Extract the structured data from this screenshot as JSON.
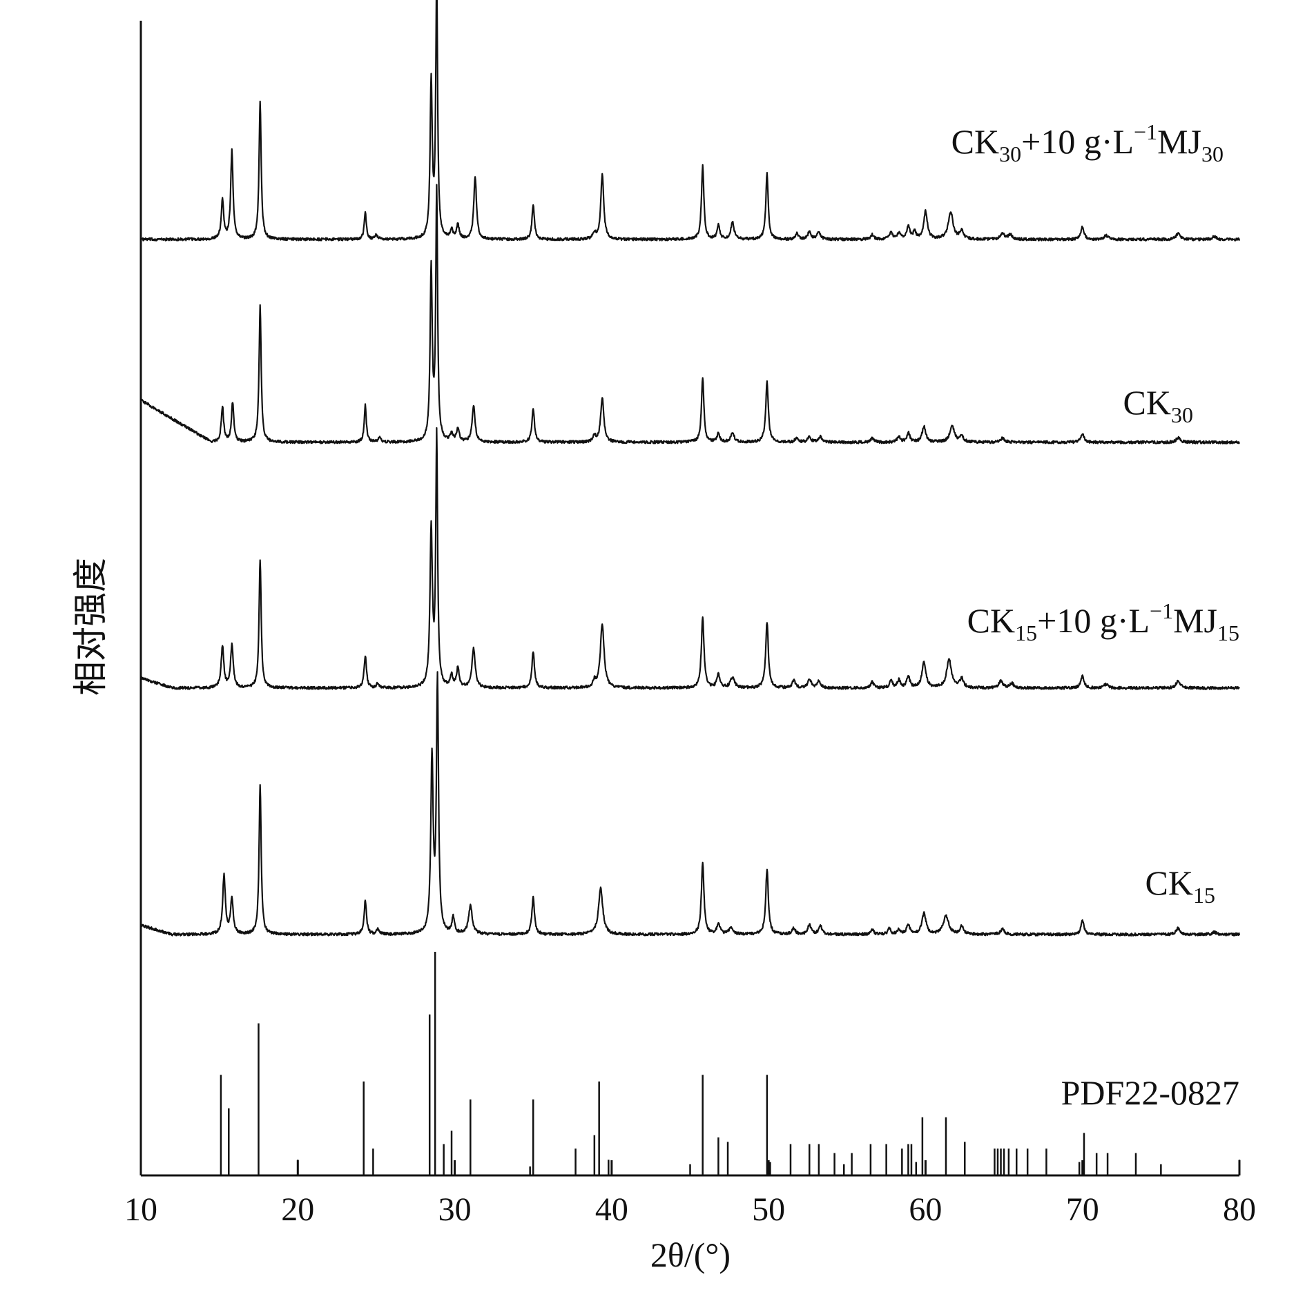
{
  "chart_data": {
    "type": "line",
    "title": "",
    "xlabel": "2θ/(°)",
    "ylabel": "相对强度",
    "xlim": [
      10,
      80
    ],
    "xticks": [
      10,
      20,
      30,
      40,
      50,
      60,
      70,
      "80"
    ],
    "ytick_labels": "none",
    "grid": false,
    "legend": "none (series labelled inline at right)",
    "line_color": "#111111",
    "series": [
      {
        "name": "CK30+10 g·L−1MJ30",
        "label_parts": {
          "a": "CK",
          "a_sub": "30",
          "b": "+10 g·L",
          "b_sup": "−1",
          "c": "MJ",
          "c_sub": "30"
        },
        "baseline": 0.1,
        "drift": [],
        "peaks": [
          [
            15.2,
            5.2,
            0.09
          ],
          [
            15.8,
            11.5,
            0.09
          ],
          [
            17.6,
            18.0,
            0.08
          ],
          [
            24.3,
            3.5,
            0.08
          ],
          [
            25.0,
            0.6,
            0.1
          ],
          [
            28.5,
            20.5,
            0.08
          ],
          [
            28.85,
            33.5,
            0.07
          ],
          [
            29.8,
            1.2,
            0.1
          ],
          [
            30.2,
            1.8,
            0.1
          ],
          [
            31.3,
            8.2,
            0.1
          ],
          [
            35.0,
            4.5,
            0.09
          ],
          [
            38.9,
            0.8,
            0.1
          ],
          [
            39.4,
            8.5,
            0.11
          ],
          [
            45.8,
            9.6,
            0.09
          ],
          [
            46.8,
            1.8,
            0.1
          ],
          [
            47.7,
            2.3,
            0.12
          ],
          [
            49.9,
            8.6,
            0.09
          ],
          [
            51.8,
            0.8,
            0.1
          ],
          [
            52.6,
            1.0,
            0.12
          ],
          [
            53.2,
            1.0,
            0.12
          ],
          [
            56.6,
            0.6,
            0.12
          ],
          [
            57.8,
            1.0,
            0.1
          ],
          [
            58.3,
            0.8,
            0.12
          ],
          [
            58.9,
            1.6,
            0.12
          ],
          [
            59.3,
            1.0,
            0.1
          ],
          [
            60.0,
            3.6,
            0.14
          ],
          [
            61.6,
            3.6,
            0.18
          ],
          [
            62.3,
            1.1,
            0.14
          ],
          [
            64.9,
            0.8,
            0.15
          ],
          [
            65.4,
            0.6,
            0.15
          ],
          [
            70.0,
            1.6,
            0.12
          ],
          [
            71.5,
            0.5,
            0.15
          ],
          [
            76.1,
            0.8,
            0.15
          ],
          [
            78.4,
            0.4,
            0.15
          ]
        ]
      },
      {
        "name": "CK30",
        "label_parts": {
          "a": "CK",
          "a_sub": "30"
        },
        "baseline": 0.2,
        "drift": [
          10,
          5.5,
          14.5
        ],
        "peaks": [
          [
            15.2,
            4.6,
            0.09
          ],
          [
            15.85,
            5.2,
            0.09
          ],
          [
            17.6,
            17.8,
            0.08
          ],
          [
            24.3,
            4.8,
            0.08
          ],
          [
            25.2,
            0.6,
            0.1
          ],
          [
            28.5,
            22.5,
            0.08
          ],
          [
            28.85,
            32.5,
            0.07
          ],
          [
            29.8,
            1.0,
            0.1
          ],
          [
            30.2,
            1.8,
            0.1
          ],
          [
            31.2,
            4.8,
            0.11
          ],
          [
            35.0,
            4.2,
            0.1
          ],
          [
            38.9,
            0.8,
            0.1
          ],
          [
            39.4,
            5.8,
            0.12
          ],
          [
            45.8,
            8.5,
            0.09
          ],
          [
            46.8,
            1.2,
            0.1
          ],
          [
            47.7,
            1.1,
            0.14
          ],
          [
            49.9,
            7.8,
            0.1
          ],
          [
            51.8,
            0.6,
            0.12
          ],
          [
            52.6,
            0.7,
            0.12
          ],
          [
            53.3,
            0.7,
            0.12
          ],
          [
            56.6,
            0.5,
            0.12
          ],
          [
            58.3,
            0.7,
            0.12
          ],
          [
            58.9,
            1.2,
            0.12
          ],
          [
            59.9,
            2.0,
            0.14
          ],
          [
            61.7,
            2.0,
            0.18
          ],
          [
            62.3,
            0.8,
            0.14
          ],
          [
            64.9,
            0.5,
            0.15
          ],
          [
            70.0,
            1.1,
            0.12
          ],
          [
            76.1,
            0.6,
            0.15
          ]
        ]
      },
      {
        "name": "CK15+10 g·L−1MJ15",
        "label_parts": {
          "a": "CK",
          "a_sub": "15",
          "b": "+10 g·L",
          "b_sup": "−1",
          "c": "MJ",
          "c_sub": "15"
        },
        "baseline": 0.1,
        "drift": [
          10,
          1.3,
          12
        ],
        "peaks": [
          [
            15.2,
            5.4,
            0.1
          ],
          [
            15.8,
            5.6,
            0.1
          ],
          [
            17.6,
            16.8,
            0.08
          ],
          [
            24.3,
            4.2,
            0.09
          ],
          [
            25.1,
            0.6,
            0.1
          ],
          [
            28.5,
            20.5,
            0.09
          ],
          [
            28.85,
            32.5,
            0.07
          ],
          [
            29.8,
            1.5,
            0.1
          ],
          [
            30.2,
            2.5,
            0.1
          ],
          [
            31.2,
            5.2,
            0.12
          ],
          [
            35.0,
            4.7,
            0.1
          ],
          [
            38.9,
            0.8,
            0.1
          ],
          [
            39.4,
            8.4,
            0.14
          ],
          [
            45.8,
            9.2,
            0.1
          ],
          [
            46.8,
            1.7,
            0.12
          ],
          [
            47.7,
            1.4,
            0.15
          ],
          [
            49.9,
            8.6,
            0.1
          ],
          [
            51.6,
            1.0,
            0.12
          ],
          [
            52.6,
            1.2,
            0.12
          ],
          [
            53.2,
            1.0,
            0.12
          ],
          [
            56.6,
            0.8,
            0.12
          ],
          [
            57.8,
            1.0,
            0.1
          ],
          [
            58.3,
            1.0,
            0.12
          ],
          [
            58.9,
            1.5,
            0.12
          ],
          [
            59.9,
            3.3,
            0.15
          ],
          [
            61.5,
            3.7,
            0.18
          ],
          [
            62.3,
            1.2,
            0.14
          ],
          [
            64.8,
            0.9,
            0.15
          ],
          [
            65.5,
            0.6,
            0.15
          ],
          [
            70.0,
            1.6,
            0.12
          ],
          [
            71.5,
            0.5,
            0.15
          ],
          [
            76.1,
            1.0,
            0.15
          ]
        ]
      },
      {
        "name": "CK15",
        "label_parts": {
          "a": "CK",
          "a_sub": "15"
        },
        "baseline": 0.1,
        "drift": [
          10,
          1.2,
          12
        ],
        "peaks": [
          [
            15.3,
            7.7,
            0.1
          ],
          [
            15.8,
            4.6,
            0.1
          ],
          [
            17.6,
            19.5,
            0.08
          ],
          [
            24.3,
            4.4,
            0.09
          ],
          [
            25.1,
            0.6,
            0.1
          ],
          [
            28.55,
            22.5,
            0.09
          ],
          [
            28.9,
            32.7,
            0.08
          ],
          [
            29.9,
            2.1,
            0.1
          ],
          [
            31.0,
            3.7,
            0.14
          ],
          [
            35.0,
            4.8,
            0.1
          ],
          [
            39.3,
            6.0,
            0.16
          ],
          [
            45.8,
            9.2,
            0.1
          ],
          [
            46.8,
            1.4,
            0.12
          ],
          [
            47.6,
            0.9,
            0.15
          ],
          [
            49.9,
            8.5,
            0.1
          ],
          [
            51.6,
            0.8,
            0.12
          ],
          [
            52.6,
            1.3,
            0.12
          ],
          [
            53.3,
            1.2,
            0.12
          ],
          [
            56.6,
            0.6,
            0.12
          ],
          [
            57.7,
            0.8,
            0.1
          ],
          [
            58.3,
            0.6,
            0.12
          ],
          [
            58.9,
            1.3,
            0.12
          ],
          [
            59.9,
            2.7,
            0.16
          ],
          [
            61.3,
            2.4,
            0.2
          ],
          [
            62.3,
            1.0,
            0.14
          ],
          [
            64.9,
            0.7,
            0.15
          ],
          [
            70.0,
            1.7,
            0.12
          ],
          [
            76.1,
            0.8,
            0.15
          ],
          [
            78.4,
            0.3,
            0.15
          ]
        ]
      }
    ],
    "reference": {
      "name": "PDF22-0827",
      "lines": [
        [
          15.1,
          45
        ],
        [
          15.6,
          30
        ],
        [
          17.5,
          68
        ],
        [
          20.0,
          7
        ],
        [
          24.2,
          42
        ],
        [
          24.8,
          12
        ],
        [
          28.4,
          72
        ],
        [
          28.75,
          100
        ],
        [
          29.3,
          14
        ],
        [
          29.8,
          20
        ],
        [
          31.0,
          34
        ],
        [
          34.8,
          4
        ],
        [
          35.0,
          34
        ],
        [
          37.7,
          12
        ],
        [
          38.9,
          18
        ],
        [
          39.2,
          42
        ],
        [
          39.8,
          7
        ],
        [
          45.0,
          5
        ],
        [
          45.8,
          45
        ],
        [
          46.8,
          17
        ],
        [
          47.4,
          15
        ],
        [
          49.9,
          45
        ],
        [
          50.1,
          6
        ],
        [
          51.4,
          14
        ],
        [
          52.6,
          14
        ],
        [
          53.2,
          14
        ],
        [
          54.2,
          10
        ],
        [
          54.8,
          5
        ],
        [
          55.3,
          10
        ],
        [
          56.5,
          14
        ],
        [
          57.5,
          14
        ],
        [
          58.5,
          12
        ],
        [
          58.9,
          14
        ],
        [
          59.1,
          14
        ],
        [
          59.4,
          6
        ],
        [
          59.8,
          26
        ],
        [
          61.3,
          26
        ],
        [
          62.5,
          15
        ],
        [
          64.4,
          12
        ],
        [
          64.6,
          12
        ],
        [
          64.8,
          12
        ],
        [
          65.0,
          12
        ],
        [
          65.3,
          12
        ],
        [
          65.8,
          12
        ],
        [
          66.5,
          12
        ],
        [
          67.7,
          12
        ],
        [
          69.8,
          6
        ],
        [
          70.1,
          19
        ],
        [
          70.9,
          10
        ],
        [
          71.6,
          10
        ],
        [
          73.4,
          10
        ],
        [
          75.0,
          5
        ],
        [
          80.0,
          7
        ]
      ]
    }
  }
}
